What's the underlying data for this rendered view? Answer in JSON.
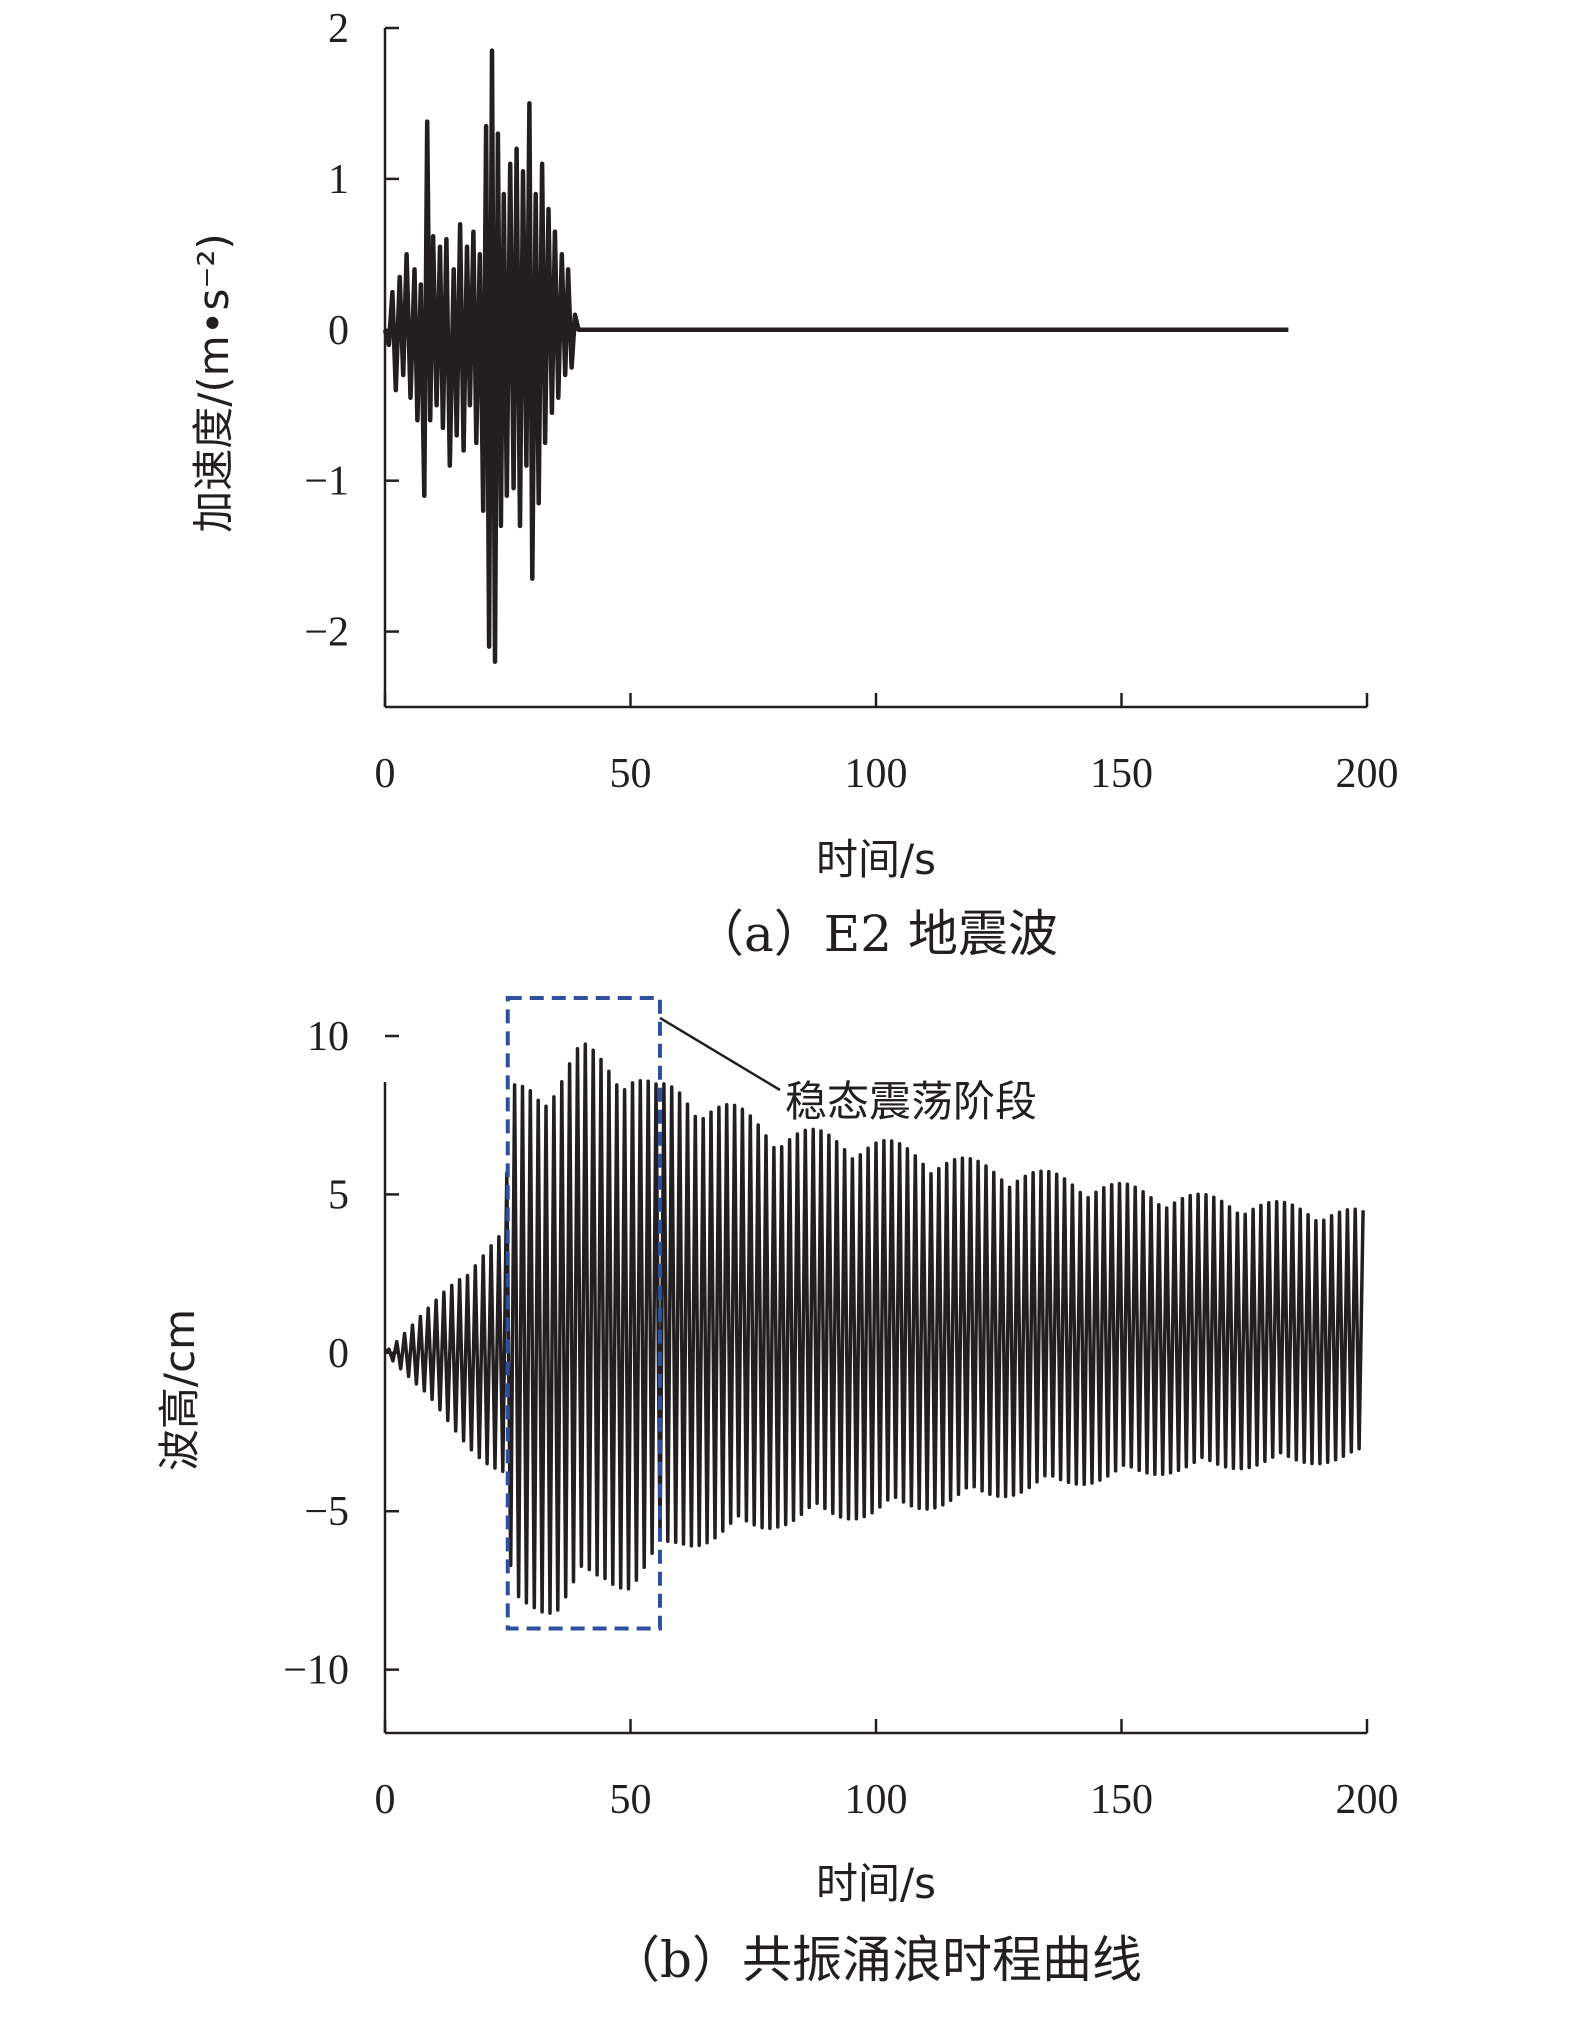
{
  "chart_data": [
    {
      "type": "line",
      "caption": "（a）E2 地震波",
      "xlabel": "时间/s",
      "ylabel": "加速度/(m•s⁻²)",
      "xlim": [
        0,
        200
      ],
      "ylim": [
        -2.5,
        2
      ],
      "x_ticks": [
        0,
        50,
        100,
        150,
        200
      ],
      "y_ticks": [
        2,
        1,
        0,
        -1,
        -2
      ],
      "y_tick_labels": [
        "2",
        "1",
        "0",
        "−1",
        "−2"
      ],
      "grid": false,
      "series": [
        {
          "color": "#231f20",
          "x": [
            0,
            0.8,
            1.5,
            2.2,
            3,
            3.7,
            4.4,
            5.2,
            6,
            6.6,
            7.3,
            8,
            8.6,
            9.2,
            9.8,
            10.5,
            11.2,
            11.8,
            12.5,
            13.2,
            14,
            14.6,
            15.3,
            16,
            16.7,
            17.3,
            18,
            18.6,
            19.3,
            20,
            20.6,
            21.2,
            21.8,
            22.4,
            23,
            23.6,
            24.2,
            24.8,
            25.5,
            26.2,
            26.8,
            27.5,
            28.1,
            28.8,
            29.4,
            30,
            30.7,
            31.3,
            32,
            32.6,
            33.3,
            34,
            34.6,
            35.3,
            36,
            36.7,
            37.3,
            38,
            38.7,
            39.4,
            40,
            184
          ],
          "y": [
            0,
            -0.1,
            0.25,
            -0.4,
            0.35,
            -0.3,
            0.5,
            -0.45,
            0.4,
            -0.6,
            0.3,
            -1.1,
            1.38,
            -0.6,
            0.62,
            -0.5,
            0.55,
            -0.65,
            0.6,
            -0.9,
            0.4,
            -0.7,
            0.7,
            -0.8,
            0.55,
            -0.5,
            0.65,
            -0.75,
            0.5,
            -1.2,
            1.35,
            -2.1,
            1.85,
            -2.2,
            1.3,
            -1.3,
            0.9,
            -1.1,
            1.1,
            -1.05,
            1.2,
            -1.3,
            1.05,
            -0.9,
            1.5,
            -1.65,
            0.9,
            -1.15,
            1.1,
            -0.75,
            0.8,
            -0.55,
            0.65,
            -0.45,
            0.5,
            -0.3,
            0.4,
            -0.25,
            0.1,
            0,
            0,
            0
          ]
        }
      ]
    },
    {
      "type": "line",
      "caption": "（b）共振涌浪时程曲线",
      "xlabel": "时间/s",
      "ylabel": "波高/cm",
      "xlim": [
        0,
        200
      ],
      "ylim": [
        -12,
        10
      ],
      "x_ticks": [
        0,
        50,
        100,
        150,
        200
      ],
      "y_ticks": [
        10,
        5,
        0,
        -5,
        -10
      ],
      "y_tick_labels": [
        "10",
        "5",
        "0",
        "−5",
        "−10"
      ],
      "grid": false,
      "annotation": {
        "text": "稳态震荡阶段",
        "box_x": [
          25,
          56
        ],
        "box_y": [
          -8.7,
          11.2
        ]
      },
      "series": [
        {
          "color": "#231f20",
          "envelope": {
            "t": [
              0,
              5,
              10,
              15,
              20,
              24,
              26,
              30,
              35,
              40,
              45,
              50,
              55,
              60,
              70,
              80,
              90,
              100,
              120,
              140,
              160,
              180,
              200
            ],
            "upper": [
              0,
              0.8,
              1.6,
              2.5,
              3.2,
              3.8,
              8.5,
              8.8,
              8.7,
              9.8,
              9.5,
              9.2,
              8.5,
              8.5,
              7.9,
              7.2,
              7,
              6.8,
              6.1,
              5.6,
              5.1,
              4.8,
              4.5
            ],
            "lower": [
              0,
              -0.8,
              -1.7,
              -2.6,
              -3.5,
              -4.2,
              -8.2,
              -8.1,
              -8.3,
              -7.6,
              -7.3,
              -7.5,
              -6.8,
              -6.2,
              -5.9,
              -5.5,
              -5.3,
              -5.2,
              -4.7,
              -4.2,
              -3.8,
              -3.6,
              -3.4
            ]
          },
          "period_s": 1.6
        }
      ]
    }
  ]
}
